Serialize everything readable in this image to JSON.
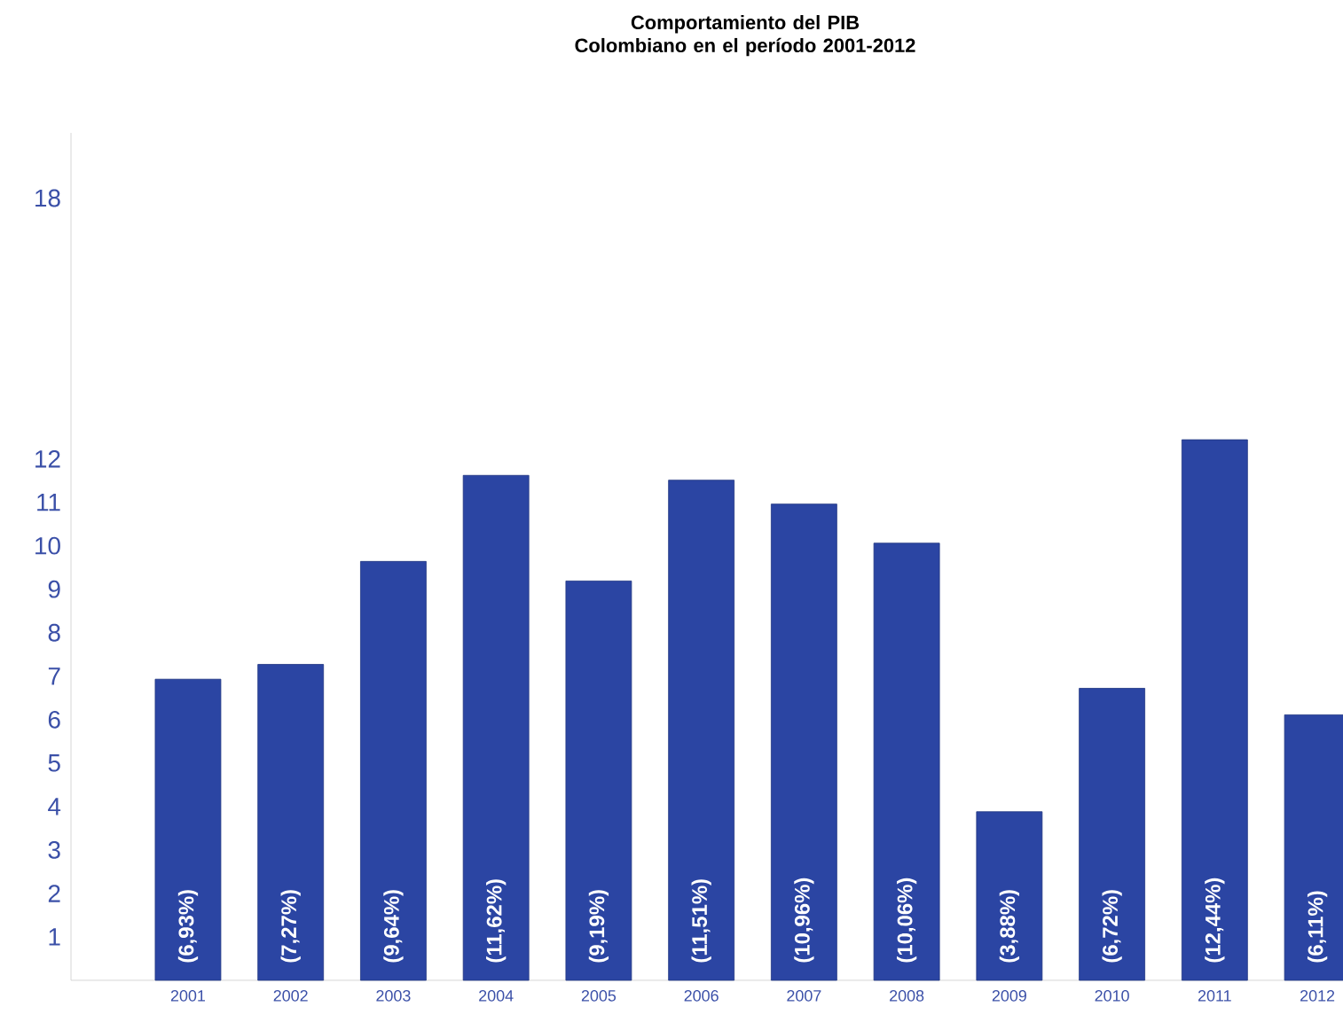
{
  "chart_data": {
    "type": "bar",
    "title": "Comportamiento del PIB Colombiano en el período 2001-2012",
    "categories": [
      "2001",
      "2002",
      "2003",
      "2004",
      "2005",
      "2006",
      "2007",
      "2008",
      "2009",
      "2010",
      "2011",
      "2012"
    ],
    "values": [
      6.93,
      7.27,
      9.64,
      11.62,
      9.19,
      11.51,
      10.96,
      10.06,
      3.88,
      6.72,
      12.44,
      6.11
    ],
    "value_labels": [
      "(6,93%)",
      "(7,27%)",
      "(9,64%)",
      "(11,62%)",
      "(9,19%)",
      "(11,51%)",
      "(10,96%)",
      "(10,06%)",
      "(3,88%)",
      "(6,72%)",
      "(12,44%)",
      "(6,11%)"
    ],
    "color": "#2b45a3",
    "ylim": [
      0,
      19.5
    ],
    "yticks": [
      1,
      2,
      3,
      4,
      5,
      6,
      7,
      8,
      9,
      10,
      11,
      12,
      18
    ]
  }
}
